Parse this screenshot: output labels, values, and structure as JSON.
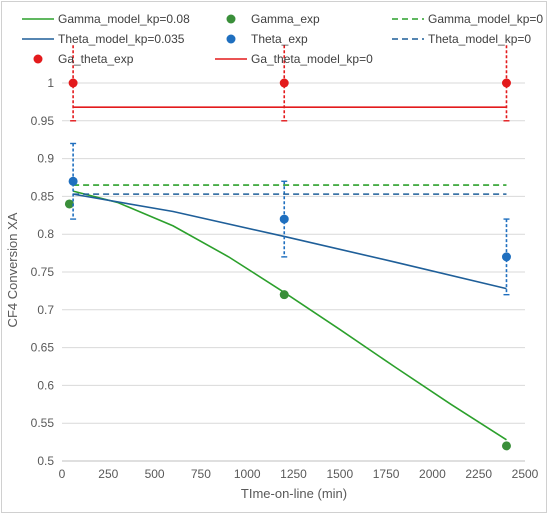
{
  "chart_data": {
    "type": "scatter",
    "xlabel": "TIme-on-line (min)",
    "ylabel": "CF4 Conversion XA",
    "xlim": [
      0,
      2500
    ],
    "ylim": [
      0.5,
      1.0
    ],
    "x_ticks": [
      0,
      250,
      500,
      750,
      1000,
      1250,
      1500,
      1750,
      2000,
      2250,
      2500
    ],
    "y_ticks": [
      0.5,
      0.55,
      0.6,
      0.65,
      0.7,
      0.75,
      0.8,
      0.85,
      0.9,
      0.95,
      1.0
    ],
    "y_tick_labels": [
      "0.5",
      "0.55",
      "0.6",
      "0.65",
      "0.7",
      "0.75",
      "0.8",
      "0.85",
      "0.9",
      "0.95",
      "1"
    ],
    "grid": "horizontal",
    "legend_position": "top",
    "series": [
      {
        "name": "Gamma_model_kp=0.08",
        "kind": "line",
        "style": "solid",
        "color": "#2ca02c",
        "x": [
          60,
          300,
          600,
          900,
          1200,
          1500,
          1800,
          2100,
          2400
        ],
        "y": [
          0.857,
          0.842,
          0.811,
          0.77,
          0.723,
          0.674,
          0.624,
          0.575,
          0.528
        ]
      },
      {
        "name": "Gamma_exp",
        "kind": "points",
        "color": "#3a8f3a",
        "x": [
          40,
          1200,
          2400
        ],
        "y": [
          0.84,
          0.72,
          0.52
        ]
      },
      {
        "name": "Gamma_model_kp=0",
        "kind": "line",
        "style": "dashed",
        "color": "#2ca02c",
        "x": [
          60,
          2400
        ],
        "y": [
          0.865,
          0.865
        ]
      },
      {
        "name": "Theta_model_kp=0.035",
        "kind": "line",
        "style": "solid",
        "color": "#1f5f99",
        "x": [
          60,
          600,
          1200,
          1800,
          2400
        ],
        "y": [
          0.853,
          0.83,
          0.797,
          0.763,
          0.728
        ]
      },
      {
        "name": "Theta_exp",
        "kind": "points",
        "color": "#1f6fbf",
        "x": [
          60,
          1200,
          2400
        ],
        "y": [
          0.87,
          0.82,
          0.77
        ],
        "error": [
          0.05,
          0.05,
          0.05
        ]
      },
      {
        "name": "Theta_model_kp=0",
        "kind": "line",
        "style": "dashed",
        "color": "#1f5f99",
        "x": [
          60,
          2400
        ],
        "y": [
          0.853,
          0.853
        ]
      },
      {
        "name": "Ga_theta_exp",
        "kind": "points",
        "color": "#e31a1c",
        "x": [
          60,
          1200,
          2400
        ],
        "y": [
          1.0,
          1.0,
          1.0
        ],
        "error": [
          0.05,
          0.05,
          0.05
        ]
      },
      {
        "name": "Ga_theta_model_kp=0",
        "kind": "line",
        "style": "solid",
        "color": "#e31a1c",
        "x": [
          60,
          2400
        ],
        "y": [
          0.968,
          0.968
        ]
      }
    ]
  }
}
